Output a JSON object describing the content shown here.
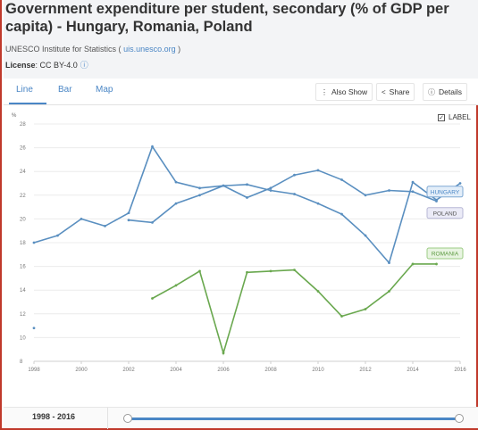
{
  "header": {
    "title": "Government expenditure per student, secondary (% of GDP per capita) - Hungary, Romania, Poland",
    "source_prefix": "UNESCO Institute for Statistics (",
    "source_link": "uis.unesco.org",
    "source_suffix": ")",
    "license_label": "License",
    "license_value": ": CC BY-4.0",
    "license_icon": "info-circle-icon"
  },
  "tabs": [
    {
      "label": "Line",
      "active": true
    },
    {
      "label": "Bar",
      "active": false
    },
    {
      "label": "Map",
      "active": false
    }
  ],
  "toolbar": {
    "also_show": "Also Show",
    "share": "Share",
    "details": "Details",
    "also_show_icon": "menu-dots-icon",
    "share_icon": "share-icon",
    "details_icon": "info-circle-icon"
  },
  "label_toggle": {
    "checked": true,
    "text": "LABEL"
  },
  "colors": {
    "hungary": "#5a8fc0",
    "poland": "#5a8fc0",
    "romania": "#6aa84f",
    "accent": "#4a86c5"
  },
  "chart_data": {
    "type": "line",
    "title": "",
    "xlabel": "",
    "ylabel": "%",
    "xlim": [
      1998,
      2016
    ],
    "ylim": [
      8,
      28
    ],
    "x_ticks": [
      1998,
      2000,
      2002,
      2004,
      2006,
      2008,
      2010,
      2012,
      2014,
      2016
    ],
    "y_ticks": [
      8,
      10,
      12,
      14,
      16,
      18,
      20,
      22,
      24,
      26,
      28
    ],
    "series": [
      {
        "name": "HUNGARY",
        "points": [
          [
            1998,
            18.0
          ],
          [
            1999,
            18.6
          ],
          [
            2000,
            20.0
          ],
          [
            2001,
            19.4
          ],
          [
            2002,
            20.5
          ],
          [
            2003,
            26.1
          ],
          [
            2004,
            23.1
          ],
          [
            2005,
            22.6
          ],
          [
            2006,
            22.8
          ],
          [
            2007,
            21.8
          ],
          [
            2008,
            22.6
          ],
          [
            2009,
            23.7
          ],
          [
            2010,
            24.1
          ],
          [
            2011,
            23.3
          ],
          [
            2012,
            22.0
          ],
          [
            2013,
            22.4
          ],
          [
            2014,
            22.3
          ],
          [
            2015,
            21.5
          ]
        ]
      },
      {
        "name": "POLAND",
        "points": [
          [
            2002,
            19.9
          ],
          [
            2003,
            19.7
          ],
          [
            2004,
            21.3
          ],
          [
            2005,
            22.0
          ],
          [
            2006,
            22.8
          ],
          [
            2007,
            22.9
          ],
          [
            2008,
            22.4
          ],
          [
            2009,
            22.1
          ],
          [
            2010,
            21.3
          ],
          [
            2011,
            20.4
          ],
          [
            2012,
            18.6
          ],
          [
            2013,
            16.3
          ],
          [
            2014,
            23.1
          ],
          [
            2015,
            21.6
          ],
          [
            2016,
            23.0
          ]
        ]
      },
      {
        "name": "ROMANIA",
        "points": [
          [
            2003,
            13.3
          ],
          [
            2004,
            14.4
          ],
          [
            2005,
            15.6
          ],
          [
            2006,
            8.7
          ],
          [
            2007,
            15.5
          ],
          [
            2008,
            15.6
          ],
          [
            2009,
            15.7
          ],
          [
            2010,
            13.9
          ],
          [
            2011,
            11.8
          ],
          [
            2012,
            12.4
          ],
          [
            2013,
            13.9
          ],
          [
            2014,
            16.2
          ],
          [
            2015,
            16.2
          ]
        ]
      },
      {
        "name": "",
        "points": [
          [
            1998,
            10.8
          ]
        ]
      }
    ]
  },
  "footer": {
    "range_label": "1998 - 2016",
    "range_start": 1998,
    "range_end": 2016
  }
}
